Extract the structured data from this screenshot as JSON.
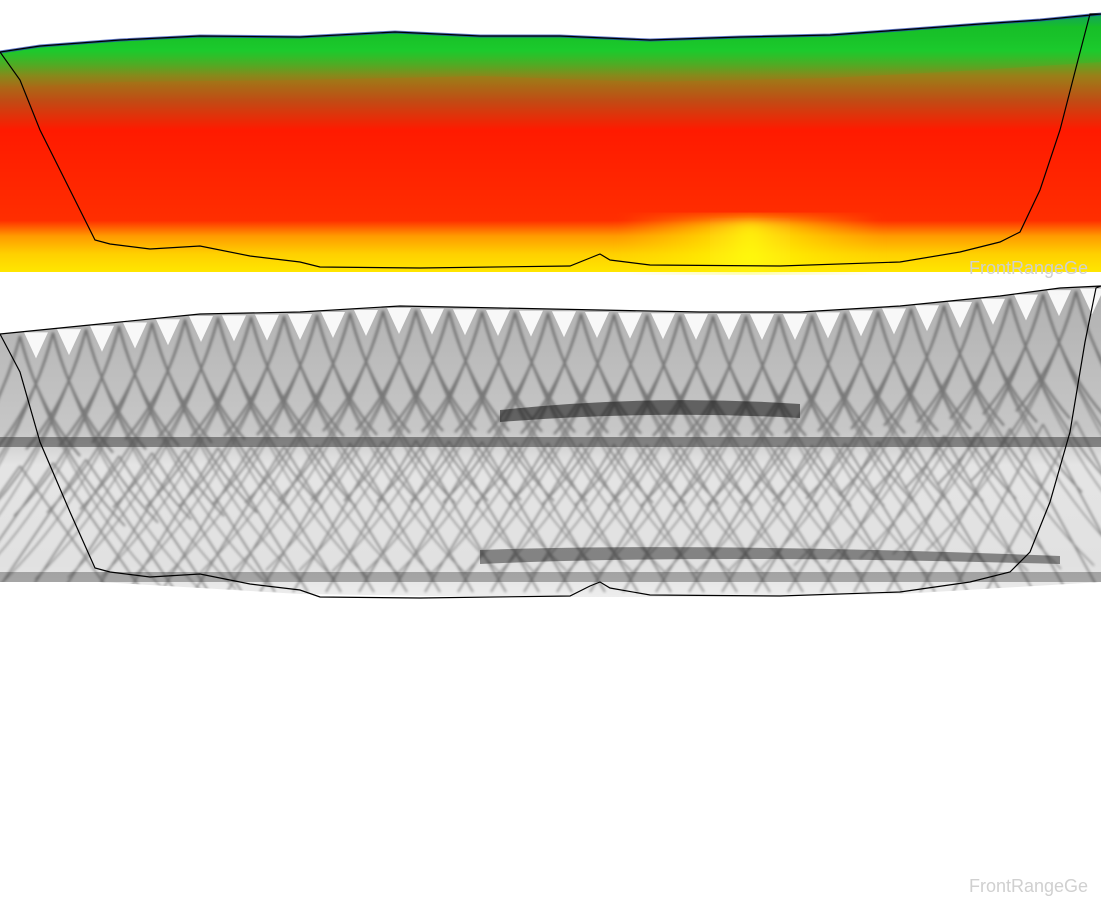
{
  "watermark_text": "FrontRangeGe",
  "palette": {
    "resistivity": [
      "#2a37c8",
      "#19a81e",
      "#1fc81f",
      "#b3801a",
      "#c24a12",
      "#ff2a00",
      "#ff3500",
      "#ffd100",
      "#ffff00"
    ],
    "coverage": [
      "#ffffff",
      "#e8e8e8",
      "#bdbdbd",
      "#8a8a8a",
      "#555555",
      "#202020"
    ]
  }
}
